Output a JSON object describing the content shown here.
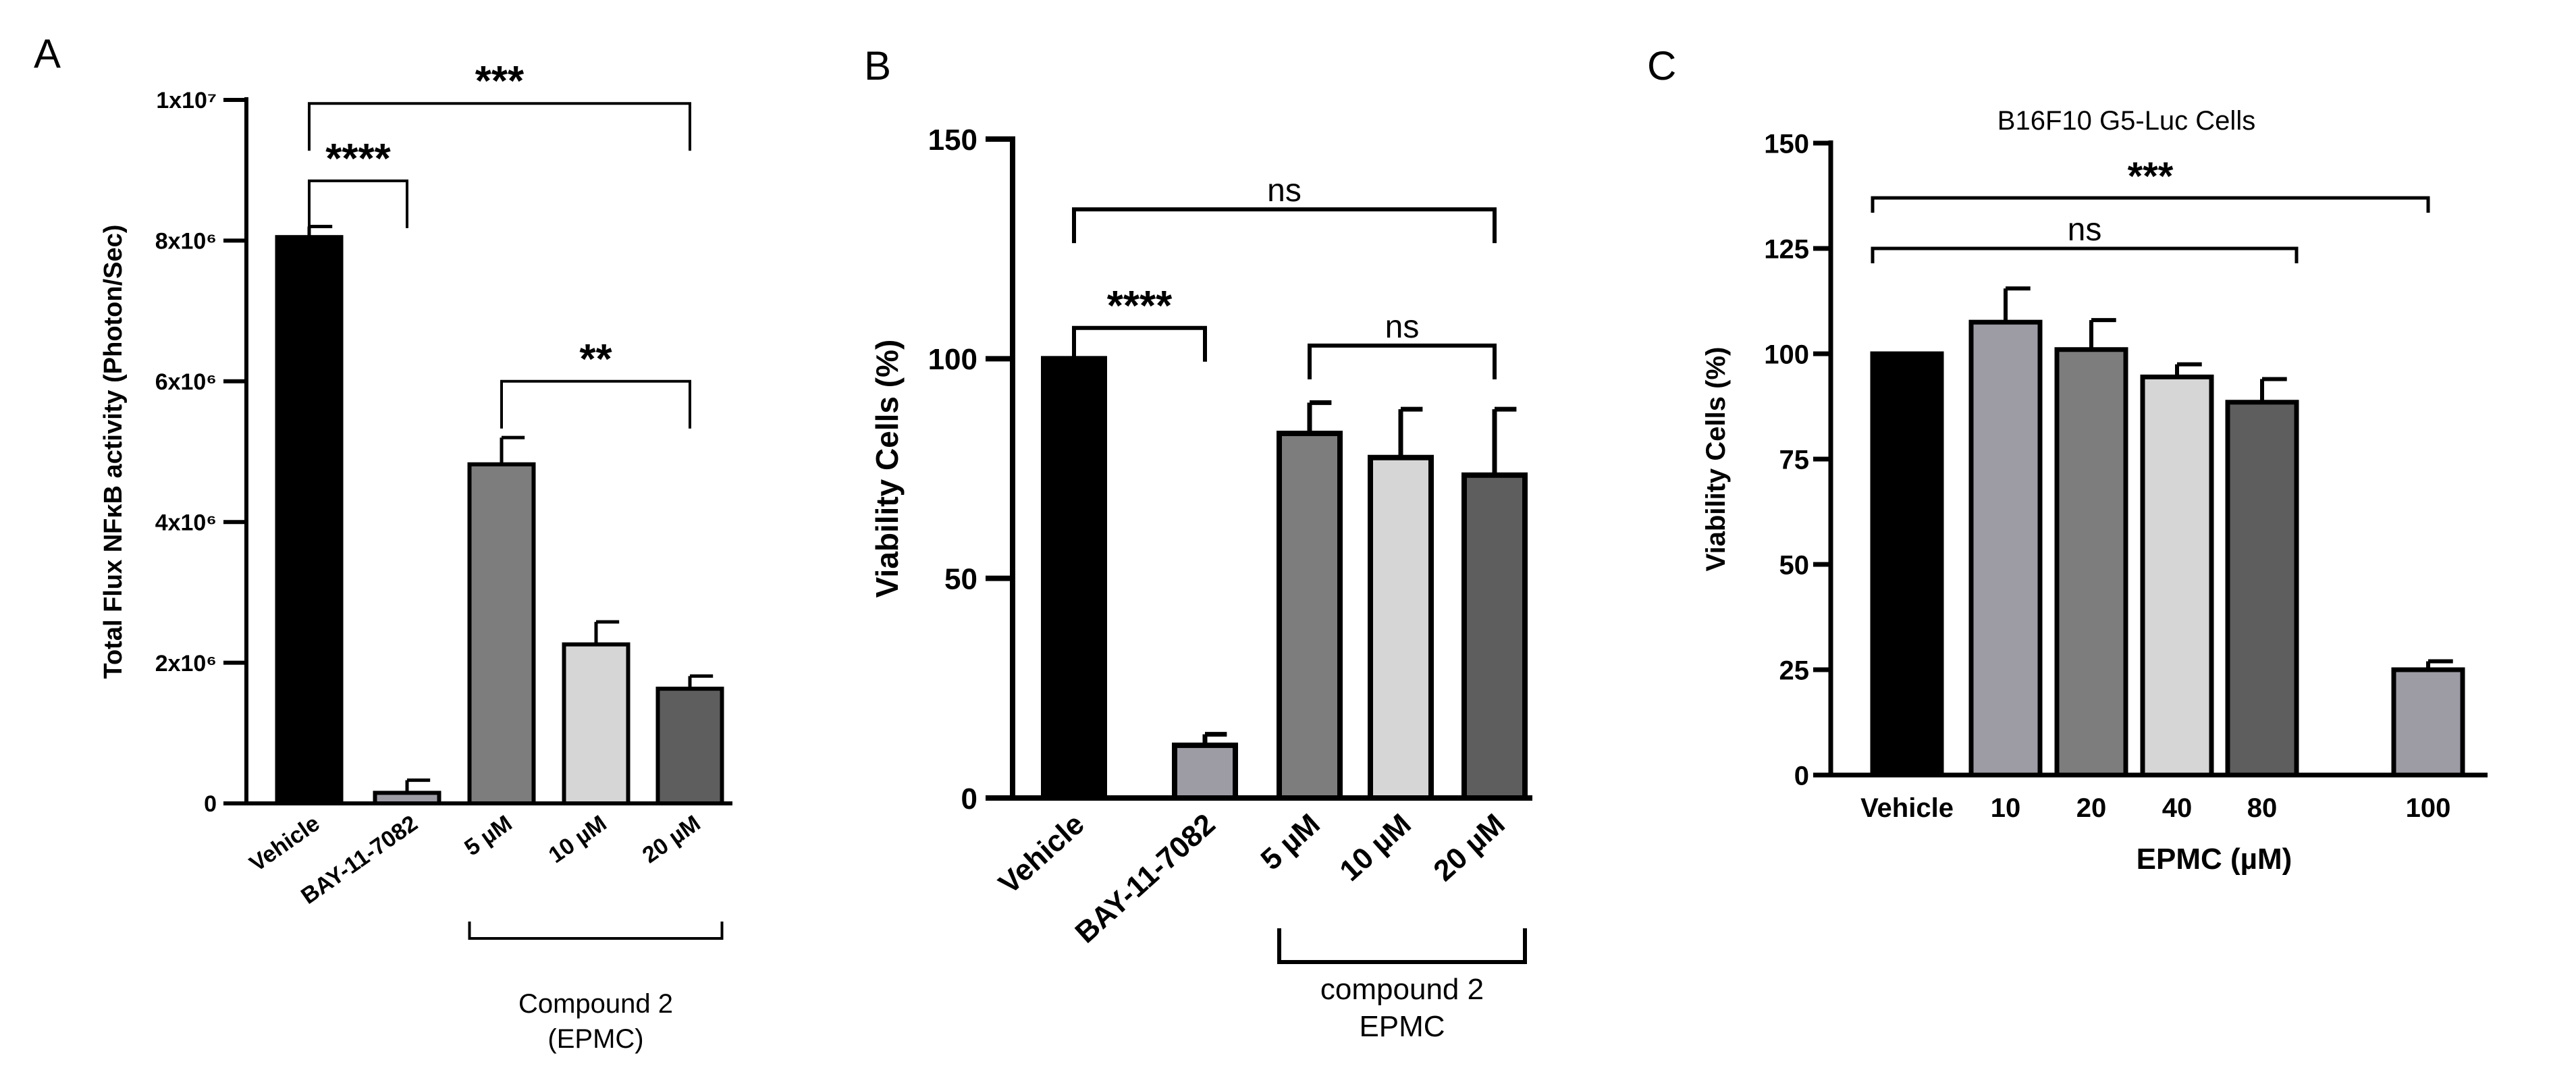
{
  "chart_data": [
    {
      "panel": "A",
      "type": "bar",
      "categories": [
        "Vehicle",
        "BAY-11-7082",
        "5 µM",
        "10 µM",
        "20 µM"
      ],
      "values": [
        8050000,
        150000,
        4820000,
        2260000,
        1630000
      ],
      "errors": [
        150000,
        180000,
        380000,
        320000,
        180000
      ],
      "colors": [
        "#000000",
        "#9d9ca5",
        "#7d7d7d",
        "#d6d6d6",
        "#5e5e5e"
      ],
      "ylabel": "Total Flux NFκB activity (Photon/Sec)",
      "ylim": [
        0,
        10000000
      ],
      "yticks": [
        {
          "value": 0,
          "label": "0"
        },
        {
          "value": 2000000,
          "label": "2x10⁶"
        },
        {
          "value": 4000000,
          "label": "4x10⁶"
        },
        {
          "value": 6000000,
          "label": "6x10⁶"
        },
        {
          "value": 8000000,
          "label": "8x10⁶"
        },
        {
          "value": 10000000,
          "label": "1x10⁷"
        }
      ],
      "group": {
        "label_line1": "Compound 2",
        "label_line2": "(EPMC)",
        "from": 2,
        "to": 4
      },
      "significance": [
        {
          "label": "***",
          "from": 0,
          "to": 4,
          "y": 9950000
        },
        {
          "label": "****",
          "from": 0,
          "to": 1,
          "y": 8850000
        },
        {
          "label": "**",
          "from": 2,
          "to": 4,
          "y": 6000000
        }
      ],
      "grid": false
    },
    {
      "panel": "B",
      "type": "bar",
      "categories": [
        "Vehicle",
        "BAY-11-7082",
        "5 µM",
        "10 µM",
        "20 µM"
      ],
      "values": [
        100,
        12,
        83,
        77.5,
        73.5
      ],
      "errors": [
        0,
        2.5,
        7,
        11,
        15
      ],
      "colors": [
        "#000000",
        "#9d9ca5",
        "#7d7d7d",
        "#d6d6d6",
        "#5e5e5e"
      ],
      "ylabel": "Viability Cells (%)",
      "ylim": [
        0,
        150
      ],
      "yticks": [
        {
          "value": 0,
          "label": "0"
        },
        {
          "value": 50,
          "label": "50"
        },
        {
          "value": 100,
          "label": "100"
        },
        {
          "value": 150,
          "label": "150"
        }
      ],
      "group": {
        "label_line1": "compound 2",
        "label_line2": "EPMC",
        "from": 2,
        "to": 4
      },
      "significance": [
        {
          "label": "ns",
          "from": 0,
          "to": 4,
          "y": 134
        },
        {
          "label": "****",
          "from": 0,
          "to": 1,
          "y": 107
        },
        {
          "label": "ns",
          "from": 2,
          "to": 4,
          "y": 103
        }
      ],
      "grid": false
    },
    {
      "panel": "C",
      "type": "bar",
      "title": "B16F10 G5-Luc Cells",
      "categories": [
        "Vehicle",
        "10",
        "20",
        "40",
        "80",
        "100"
      ],
      "values": [
        100,
        107.5,
        101,
        94.5,
        88.5,
        25
      ],
      "errors": [
        0,
        8,
        7,
        3,
        5.5,
        2
      ],
      "colors": [
        "#000000",
        "#9d9ca5",
        "#7d7d7d",
        "#d6d6d6",
        "#5e5e5e",
        "#9d9ca5"
      ],
      "xlabel": "EPMC (µM)",
      "ylabel": "Viability Cells (%)",
      "ylim": [
        0,
        150
      ],
      "yticks": [
        {
          "value": 0,
          "label": "0"
        },
        {
          "value": 25,
          "label": "25"
        },
        {
          "value": 50,
          "label": "50"
        },
        {
          "value": 75,
          "label": "75"
        },
        {
          "value": 100,
          "label": "100"
        },
        {
          "value": 125,
          "label": "125"
        },
        {
          "value": 150,
          "label": "150"
        }
      ],
      "significance": [
        {
          "label": "***",
          "from": 0,
          "to": 5,
          "y": 137
        },
        {
          "label": "ns",
          "from": 0,
          "to": 4,
          "y": 125
        }
      ],
      "grid": false
    }
  ]
}
